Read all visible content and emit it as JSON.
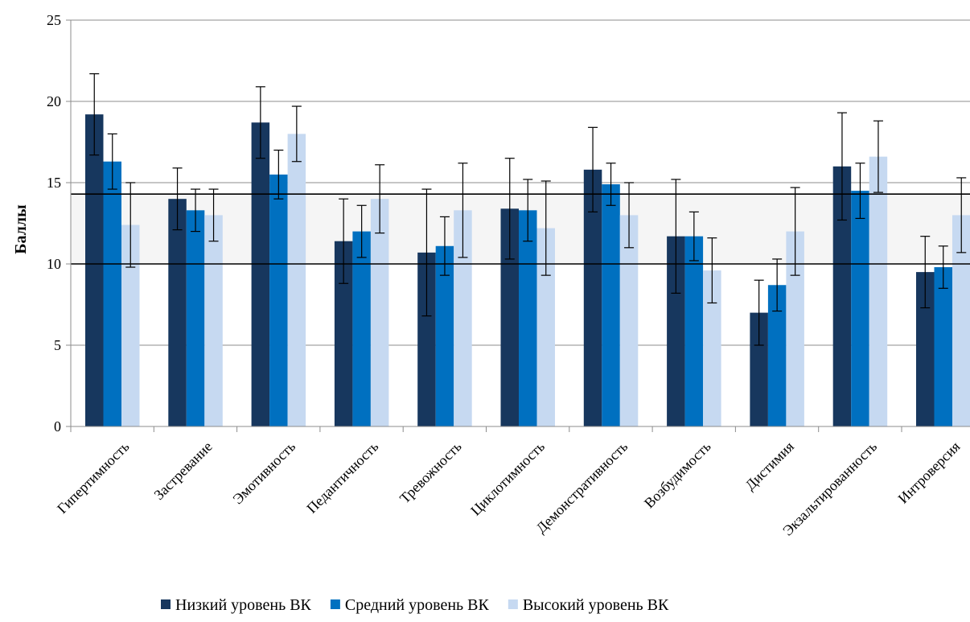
{
  "chart_data": {
    "type": "bar",
    "title": "",
    "xlabel": "",
    "ylabel": "Баллы",
    "ylim": [
      0,
      25
    ],
    "yticks": [
      0,
      5,
      10,
      15,
      20,
      25
    ],
    "grid": true,
    "legend_position": "bottom",
    "categories": [
      "Гипертимность",
      "Застревание",
      "Эмотивность",
      "Педантичность",
      "Тревожность",
      "Циклотимность",
      "Демонстративность",
      "Возбудимость",
      "Дистимия",
      "Экзальтированность",
      "Интроверсия"
    ],
    "series": [
      {
        "name": "Низкий уровень ВК",
        "color": "#17375e",
        "values": [
          19.2,
          14.0,
          18.7,
          11.4,
          10.7,
          13.4,
          15.8,
          11.7,
          7.0,
          16.0,
          9.5
        ],
        "error": [
          2.5,
          1.9,
          2.2,
          2.6,
          3.9,
          3.1,
          2.6,
          3.5,
          2.0,
          3.3,
          2.2
        ]
      },
      {
        "name": "Средний уровень ВК",
        "color": "#0070c0",
        "values": [
          16.3,
          13.3,
          15.5,
          12.0,
          11.1,
          13.3,
          14.9,
          11.7,
          8.7,
          14.5,
          9.8
        ],
        "error": [
          1.7,
          1.3,
          1.5,
          1.6,
          1.8,
          1.9,
          1.3,
          1.5,
          1.6,
          1.7,
          1.3
        ]
      },
      {
        "name": "Высокий уровень ВК",
        "color": "#c6d9f1",
        "values": [
          12.4,
          13.0,
          18.0,
          14.0,
          13.3,
          12.2,
          13.0,
          9.6,
          12.0,
          16.6,
          13.0
        ],
        "error": [
          2.6,
          1.6,
          1.7,
          2.1,
          2.9,
          2.9,
          2.0,
          2.0,
          2.7,
          2.2,
          2.3
        ]
      }
    ],
    "reference_band": {
      "from": 10,
      "to": 14.3
    }
  }
}
